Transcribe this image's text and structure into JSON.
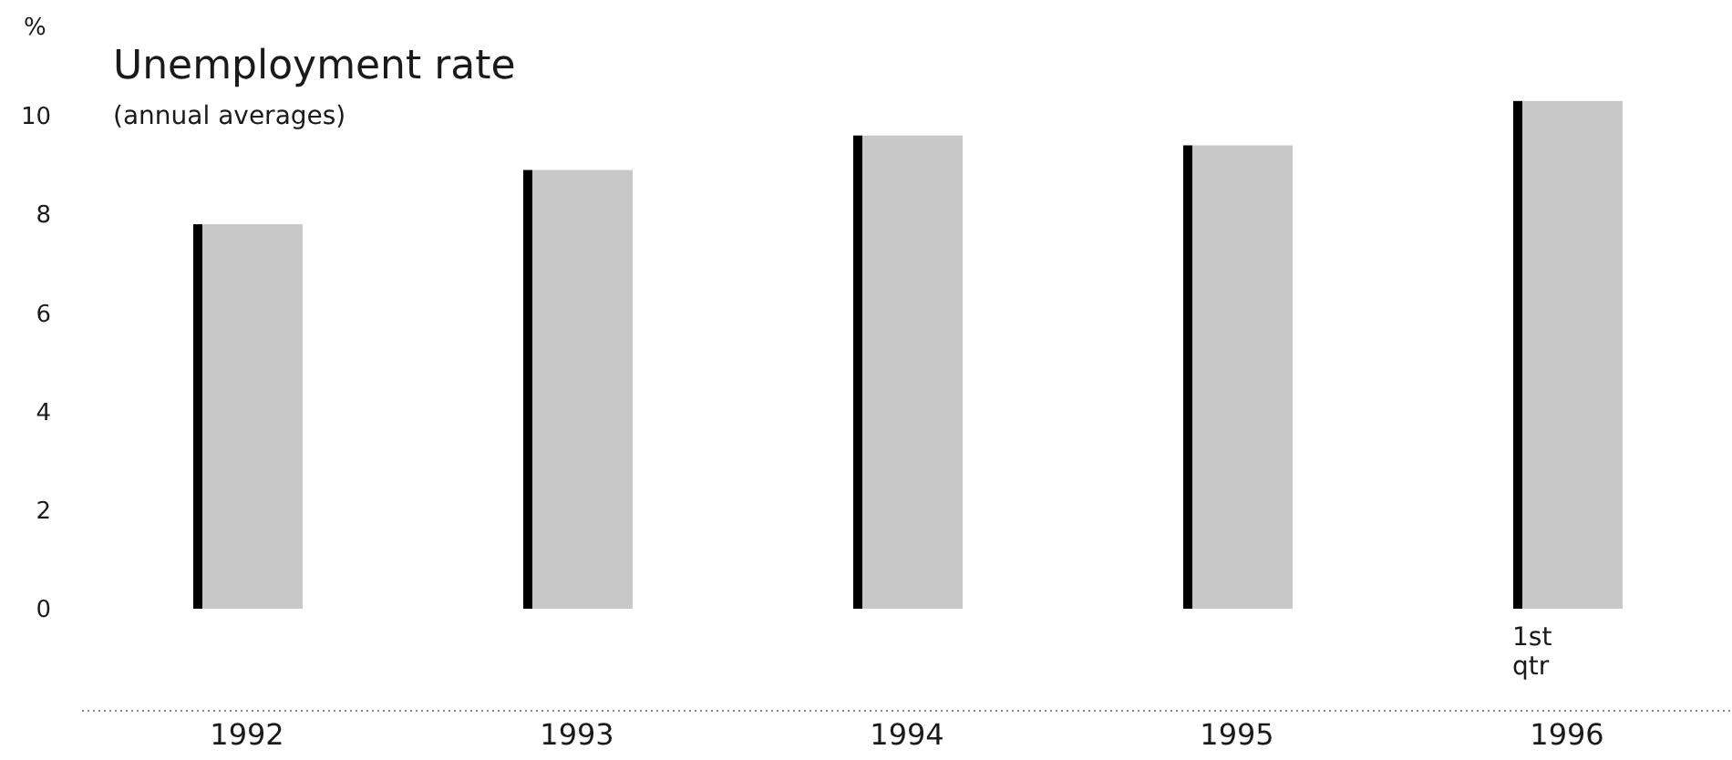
{
  "chart_data": {
    "type": "bar",
    "title": "Unemployment rate",
    "subtitle": "(annual averages)",
    "ylabel": "%",
    "categories": [
      "1992",
      "1993",
      "1994",
      "1995",
      "1996"
    ],
    "values": [
      7.8,
      8.9,
      9.6,
      9.4,
      10.3
    ],
    "color": "#c8c8c8",
    "ylim": [
      0,
      10.5
    ],
    "yticks": [
      0,
      2,
      4,
      6,
      8,
      10
    ],
    "grid": false,
    "annotations": [
      "1st qtr"
    ]
  }
}
